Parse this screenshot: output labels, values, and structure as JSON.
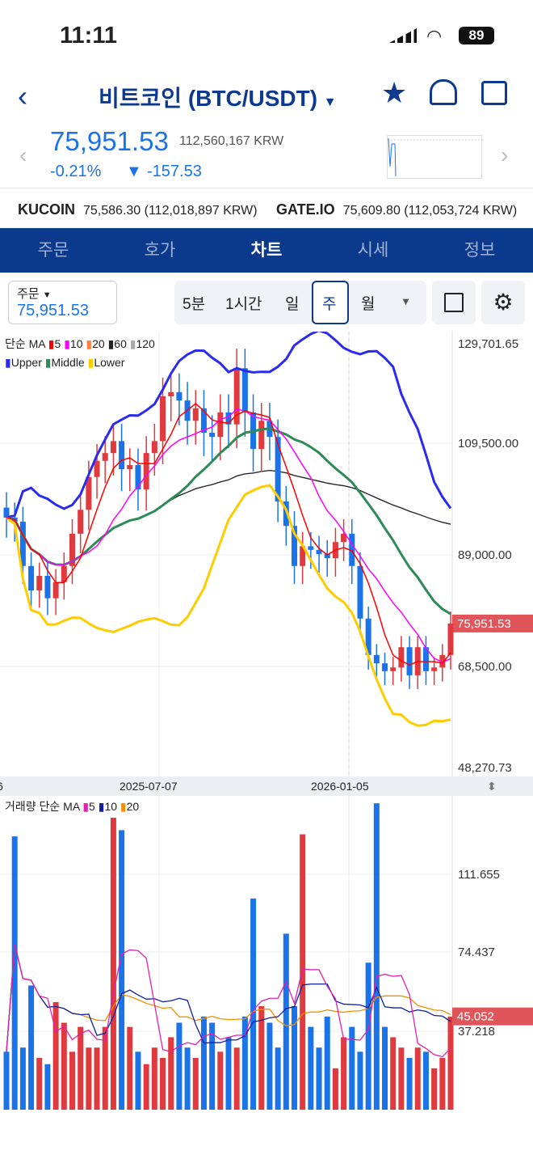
{
  "status": {
    "time": "11:11",
    "battery": "89"
  },
  "header": {
    "title": "비트코인 (BTC/USDT)"
  },
  "price": {
    "last": "75,951.53",
    "krw": "112,560,167 KRW",
    "pct": "-0.21%",
    "change": "-157.53"
  },
  "exchanges": [
    {
      "name": "KUCOIN",
      "value": "75,586.30 (112,018,897 KRW)"
    },
    {
      "name": "GATE.IO",
      "value": "75,609.80 (112,053,724 KRW)"
    }
  ],
  "tabs": [
    "주문",
    "호가",
    "차트",
    "시세",
    "정보"
  ],
  "active_tab": "차트",
  "order": {
    "label": "주문",
    "value": "75,951.53"
  },
  "periods": [
    "5분",
    "1시간",
    "일",
    "주",
    "월"
  ],
  "active_period": "주",
  "legend": {
    "ma_title": "단순 MA",
    "ma": [
      "5",
      "10",
      "20",
      "60",
      "120"
    ],
    "bb": [
      "Upper",
      "Middle",
      "Lower"
    ],
    "vol_title": "거래량 단순 MA",
    "vol_ma": [
      "5",
      "10",
      "20"
    ]
  },
  "colors": {
    "up": "#e0393e",
    "down": "#1a73e8",
    "ma5": "#ff0000",
    "ma10": "#ff00ff",
    "ma20": "#ff7f3f",
    "ma60": "#222222",
    "ma120": "#aaaaaa",
    "upper": "#2a2af0",
    "middle": "#2e8b57",
    "lower": "#ffcc00",
    "vma5": "#e020b0",
    "vma10": "#1020a0",
    "vma20": "#f09000"
  },
  "chart_data": {
    "type": "candlestick",
    "price_axis": {
      "labels": [
        "129,701.65",
        "109,500.00",
        "89,000.00",
        "68,500.00",
        "48,270.73"
      ],
      "range": [
        48270.73,
        129701.65
      ],
      "current": "75,951.53"
    },
    "date_labels": [
      "6",
      "2025-07-07",
      "2026-01-05"
    ],
    "closes": [
      96300,
      95500,
      87000,
      82300,
      85100,
      80800,
      83900,
      87000,
      93200,
      97800,
      104100,
      107200,
      108700,
      111000,
      105600,
      106400,
      101700,
      108700,
      111000,
      119600,
      120400,
      118800,
      114900,
      117300,
      112600,
      111800,
      116500,
      114200,
      125000,
      116500,
      109500,
      114900,
      111800,
      99400,
      94700,
      87000,
      90800,
      90100,
      89300,
      88500,
      91600,
      93200,
      87000,
      76900,
      69900,
      68300,
      66800,
      67500,
      71400,
      66000,
      71400,
      66800,
      67500,
      69900,
      75950
    ],
    "volume_axis": {
      "labels": [
        "111.655",
        "74.437",
        "37.218"
      ],
      "current": "45.052",
      "max": 150
    },
    "volumes": [
      28,
      132,
      30,
      60,
      25,
      22,
      52,
      42,
      28,
      40,
      30,
      30,
      40,
      141,
      135,
      40,
      28,
      22,
      30,
      25,
      35,
      42,
      30,
      25,
      45,
      42,
      28,
      35,
      30,
      45,
      102,
      50,
      42,
      30,
      85,
      50,
      133,
      40,
      30,
      45,
      20,
      35,
      40,
      28,
      71,
      148,
      40,
      35,
      30,
      25,
      30,
      28,
      20,
      25,
      45
    ]
  }
}
